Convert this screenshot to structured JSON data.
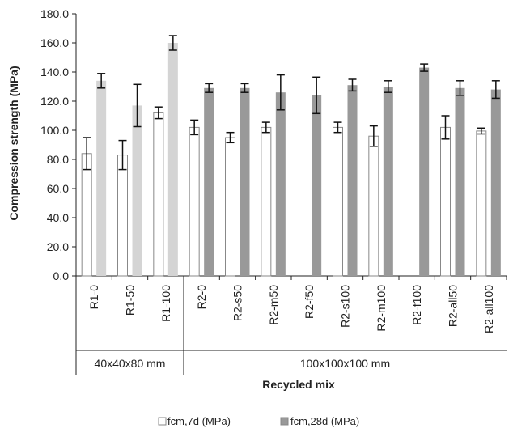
{
  "chart_data": {
    "type": "bar",
    "xlabel": "Recycled mix",
    "ylabel": "Compression strength (MPa)",
    "ylim": [
      0,
      180
    ],
    "yticks": [
      "0.0",
      "20.0",
      "40.0",
      "60.0",
      "80.0",
      "100.0",
      "120.0",
      "140.0",
      "160.0",
      "180.0"
    ],
    "categories": [
      "R1-0",
      "R1-50",
      "R1-100",
      "R2-0",
      "R2-s50",
      "R2-m50",
      "R2-f50",
      "R2-s100",
      "R2-m100",
      "R2-f100",
      "R2-all50",
      "R2-all100"
    ],
    "groups": [
      {
        "label": "40x40x80 mm",
        "count": 3
      },
      {
        "label": "100x100x100 mm",
        "count": 9
      }
    ],
    "series": [
      {
        "name": "fcm,7d (MPa)",
        "values": [
          84,
          83,
          112,
          102,
          95,
          102,
          null,
          102,
          96,
          null,
          102,
          99.5
        ],
        "errors": [
          11,
          10,
          4,
          5,
          3.5,
          3.5,
          null,
          3.5,
          7,
          null,
          8,
          2
        ]
      },
      {
        "name": "fcm,28d (MPa)",
        "values": [
          134,
          117,
          160,
          129,
          129,
          126,
          124,
          131,
          130,
          143,
          129,
          128
        ],
        "errors": [
          5,
          14.5,
          5,
          3,
          3,
          12,
          12.5,
          4,
          4,
          2.5,
          5,
          6
        ]
      }
    ],
    "grid": false,
    "legend_position": "bottom"
  },
  "colors": {
    "series7_fill": "#ffffff",
    "series7_stroke": "#888888",
    "r1_28d_fill": "#d4d4d4",
    "r2_28d_fill": "#999999",
    "axis": "#222222"
  }
}
